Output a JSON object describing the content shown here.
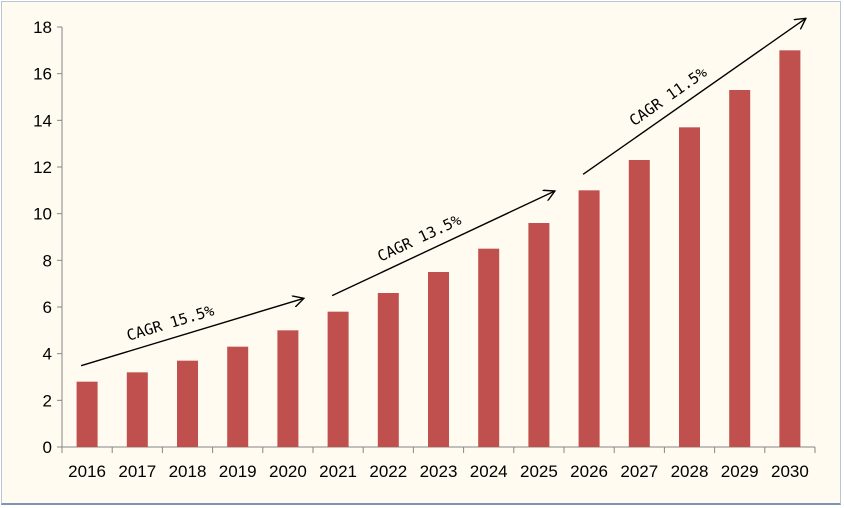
{
  "chart_data": {
    "type": "bar",
    "title": "",
    "xlabel": "",
    "ylabel": "",
    "categories": [
      "2016",
      "2017",
      "2018",
      "2019",
      "2020",
      "2021",
      "2022",
      "2023",
      "2024",
      "2025",
      "2026",
      "2027",
      "2028",
      "2029",
      "2030"
    ],
    "values": [
      2.8,
      3.2,
      3.7,
      4.3,
      5.0,
      5.8,
      6.6,
      7.5,
      8.5,
      9.6,
      11.0,
      12.3,
      13.7,
      15.3,
      17.0
    ],
    "ylim": [
      0,
      18
    ],
    "yticks": [
      "0",
      "2",
      "4",
      "6",
      "8",
      "10",
      "12",
      "14",
      "16",
      "18"
    ],
    "grid": false,
    "legend": "none",
    "bar_color": "#c0504d",
    "annotations": [
      {
        "text": "CAGR 15.5%",
        "from_category": "2016",
        "to_category": "2020"
      },
      {
        "text": "CAGR 13.5%",
        "from_category": "2021",
        "to_category": "2025"
      },
      {
        "text": "CAGR 11.5%",
        "from_category": "2026",
        "to_category": "2030"
      }
    ]
  }
}
